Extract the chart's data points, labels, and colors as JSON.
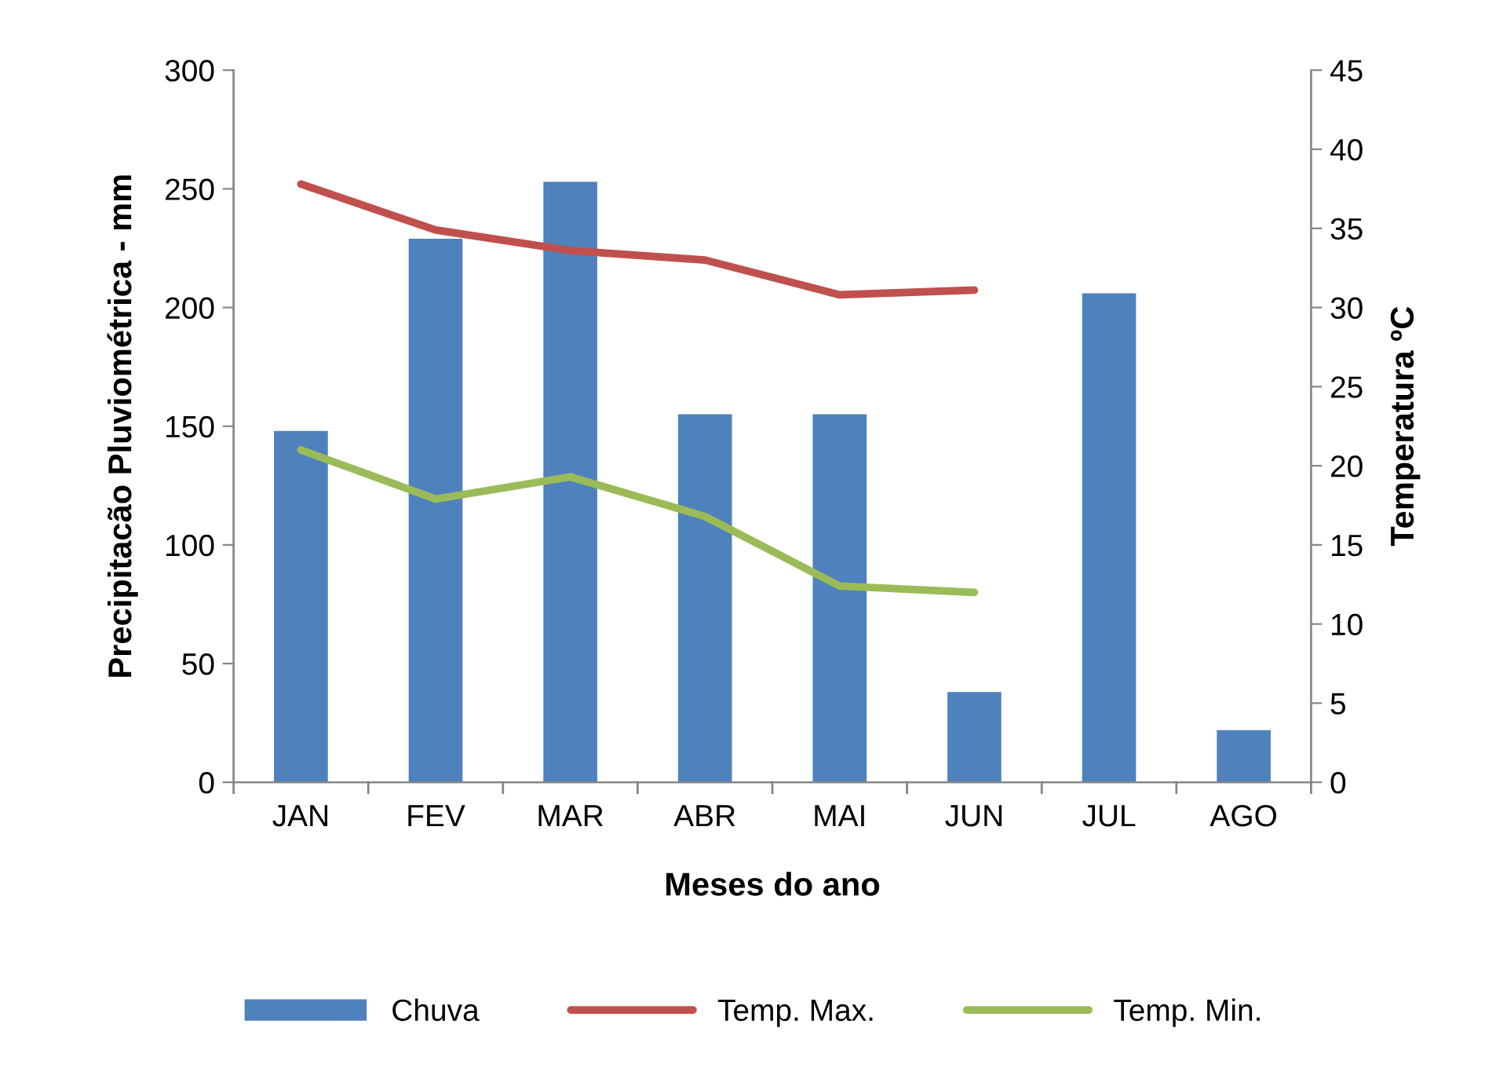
{
  "chart_data": {
    "type": "bar",
    "xlabel": "Meses do ano",
    "ylabel": "Precipitacão Pluviométrica - mm",
    "y2label": "Temperatura ºC",
    "categories": [
      "JAN",
      "FEV",
      "MAR",
      "ABR",
      "MAI",
      "JUN",
      "JUL",
      "AGO"
    ],
    "series": [
      {
        "name": "Chuva",
        "color": "#4f81bd",
        "values": [
          148,
          229,
          253,
          155,
          155,
          38,
          206,
          22
        ]
      },
      {
        "name": "Temp. Max.",
        "type": "line",
        "axis": "y2",
        "color": "#c0504d",
        "values": [
          37.8,
          34.9,
          33.6,
          33.0,
          30.8,
          31.1,
          null,
          null
        ]
      },
      {
        "name": "Temp. Min.",
        "type": "line",
        "axis": "y2",
        "color": "#9bbb59",
        "values": [
          21.0,
          17.9,
          19.3,
          16.8,
          12.4,
          12.0,
          null,
          null
        ]
      }
    ],
    "ylim": [
      0,
      300
    ],
    "yticks": [
      0,
      50,
      100,
      150,
      200,
      250,
      300
    ],
    "y2lim": [
      0,
      45
    ],
    "y2ticks": [
      0,
      5,
      10,
      15,
      20,
      25,
      30,
      35,
      40,
      45
    ],
    "legend": "bottom",
    "grid": false,
    "marker": "none",
    "line_style": "solid"
  }
}
